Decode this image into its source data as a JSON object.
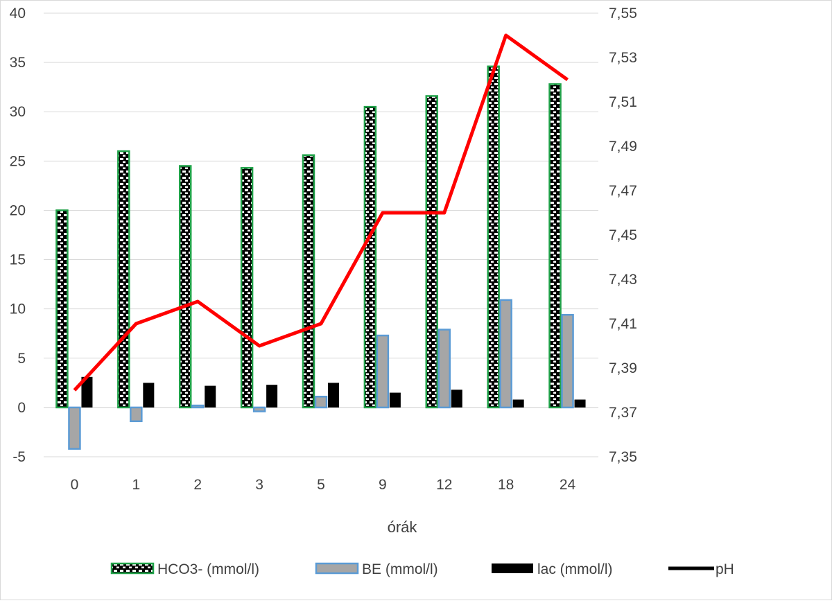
{
  "chart_data": {
    "type": "bar",
    "title": "",
    "xlabel": "órák",
    "ylabel": "",
    "categories": [
      "0",
      "1",
      "2",
      "3",
      "5",
      "9",
      "12",
      "18",
      "24"
    ],
    "ylim": [
      -5,
      40
    ],
    "y_ticks": [
      "-5",
      "0",
      "5",
      "10",
      "15",
      "20",
      "25",
      "30",
      "35",
      "40"
    ],
    "y2lim": [
      7.35,
      7.55
    ],
    "y2_ticks": [
      "7,35",
      "7,37",
      "7,39",
      "7,41",
      "7,43",
      "7,45",
      "7,47",
      "7,49",
      "7,51",
      "7,53",
      "7,55"
    ],
    "grid": true,
    "legend_position": "bottom",
    "series": [
      {
        "name": "HCO3- (mmol/l)",
        "type": "bar",
        "axis": "left",
        "values": [
          20,
          26,
          24.5,
          24.3,
          25.6,
          30.5,
          31.6,
          34.6,
          32.8
        ],
        "color": "#000000",
        "border": "#21a34a",
        "pattern": "dotted"
      },
      {
        "name": "BE (mmol/l)",
        "type": "bar",
        "axis": "left",
        "values": [
          -4.2,
          -1.4,
          0.2,
          -0.4,
          1.1,
          7.3,
          7.9,
          10.9,
          9.4
        ],
        "color": "#a6a6a6",
        "border": "#5b9bd5"
      },
      {
        "name": "lac (mmol/l)",
        "type": "bar",
        "axis": "left",
        "values": [
          3.1,
          2.5,
          2.2,
          2.3,
          2.5,
          1.5,
          1.8,
          0.8,
          0.8
        ],
        "color": "#000000"
      },
      {
        "name": "pH",
        "type": "line",
        "axis": "right",
        "values": [
          7.38,
          7.41,
          7.42,
          7.4,
          7.41,
          7.46,
          7.46,
          7.54,
          7.52
        ],
        "color": "#ff0000",
        "legend_color": "#000000"
      }
    ]
  }
}
